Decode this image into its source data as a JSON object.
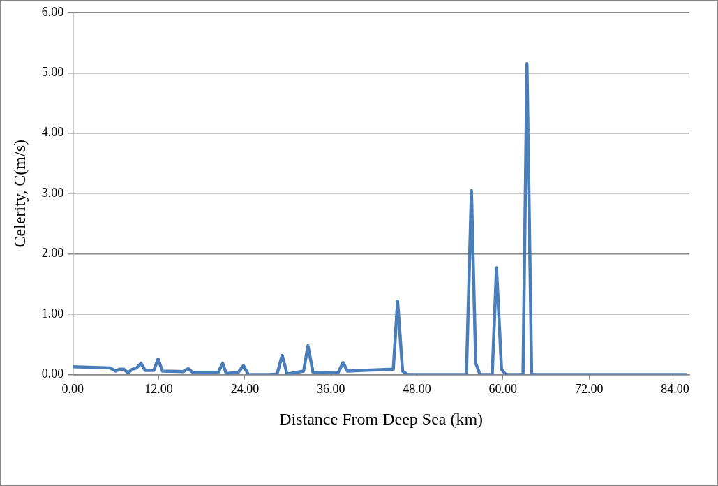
{
  "chart_data": {
    "type": "line",
    "xlabel": "Distance From Deep Sea (km)",
    "ylabel": "Celerity, C(m/s)",
    "x": [
      0,
      5.2,
      6.0,
      6.5,
      7.1,
      7.7,
      8.3,
      8.9,
      9.5,
      10.1,
      11.3,
      11.9,
      12.5,
      15.4,
      16.1,
      16.7,
      20.3,
      20.9,
      21.4,
      23.1,
      23.8,
      24.5,
      27.4,
      28.5,
      29.2,
      29.9,
      32.2,
      32.8,
      33.5,
      37.0,
      37.7,
      38.3,
      44.7,
      45.3,
      46.0,
      46.7,
      54.9,
      55.6,
      56.2,
      56.8,
      58.5,
      59.1,
      59.8,
      60.4,
      62.8,
      63.35,
      64.0,
      85.5
    ],
    "series": [
      {
        "color": "#4a7ebb",
        "values": [
          0.13,
          0.11,
          0.06,
          0.09,
          0.09,
          0.03,
          0.09,
          0.11,
          0.19,
          0.07,
          0.07,
          0.26,
          0.06,
          0.05,
          0.1,
          0.04,
          0.04,
          0.19,
          0.02,
          0.04,
          0.15,
          0.0,
          0.0,
          0.01,
          0.32,
          0.01,
          0.06,
          0.48,
          0.04,
          0.03,
          0.2,
          0.06,
          0.09,
          1.22,
          0.06,
          0.0,
          0.0,
          3.05,
          0.19,
          0.0,
          0.0,
          1.77,
          0.09,
          0.0,
          0.0,
          5.15,
          0.0,
          0.0
        ]
      }
    ],
    "xlim": [
      0,
      86
    ],
    "xticks": [
      {
        "value": 0,
        "label": "0.00"
      },
      {
        "value": 12,
        "label": "12.00"
      },
      {
        "value": 24,
        "label": "24.00"
      },
      {
        "value": 36,
        "label": "36.00"
      },
      {
        "value": 48,
        "label": "48.00"
      },
      {
        "value": 60,
        "label": "60.00"
      },
      {
        "value": 72,
        "label": "72.00"
      },
      {
        "value": 84,
        "label": "84.00"
      }
    ],
    "ylim": [
      0,
      6
    ],
    "yticks": [
      {
        "value": 0,
        "label": "0.00"
      },
      {
        "value": 1,
        "label": "1.00"
      },
      {
        "value": 2,
        "label": "2.00"
      },
      {
        "value": 3,
        "label": "3.00"
      },
      {
        "value": 4,
        "label": "4.00"
      },
      {
        "value": 5,
        "label": "5.00"
      },
      {
        "value": 6,
        "label": "6.00"
      }
    ],
    "grid": "y",
    "legend": false,
    "marker": "none",
    "line_style": "solid"
  }
}
